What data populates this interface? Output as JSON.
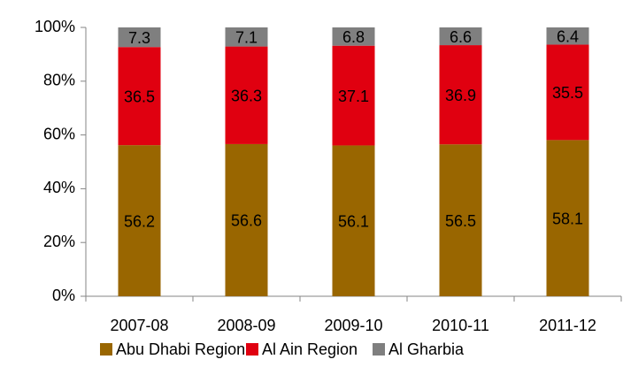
{
  "chart_data": {
    "type": "stacked_bar",
    "categories": [
      "2007-08",
      "2008-09",
      "2009-10",
      "2010-11",
      "2011-12"
    ],
    "series": [
      {
        "name": "Abu Dhabi Region",
        "color": "#996600",
        "values": [
          56.2,
          56.6,
          56.1,
          56.5,
          58.1
        ]
      },
      {
        "name": "Al Ain Region",
        "color": "#e00010",
        "values": [
          36.5,
          36.3,
          37.1,
          36.9,
          35.5
        ]
      },
      {
        "name": "Al Gharbia",
        "color": "#7f7f7f",
        "values": [
          7.3,
          7.1,
          6.8,
          6.6,
          6.4
        ]
      }
    ],
    "ylim": [
      0,
      100
    ],
    "yticks": [
      {
        "value": 0,
        "label": "0%"
      },
      {
        "value": 20,
        "label": "20%"
      },
      {
        "value": 40,
        "label": "40%"
      },
      {
        "value": 60,
        "label": "60%"
      },
      {
        "value": 80,
        "label": "80%"
      },
      {
        "value": 100,
        "label": "100%"
      }
    ],
    "legend": "bottom"
  }
}
